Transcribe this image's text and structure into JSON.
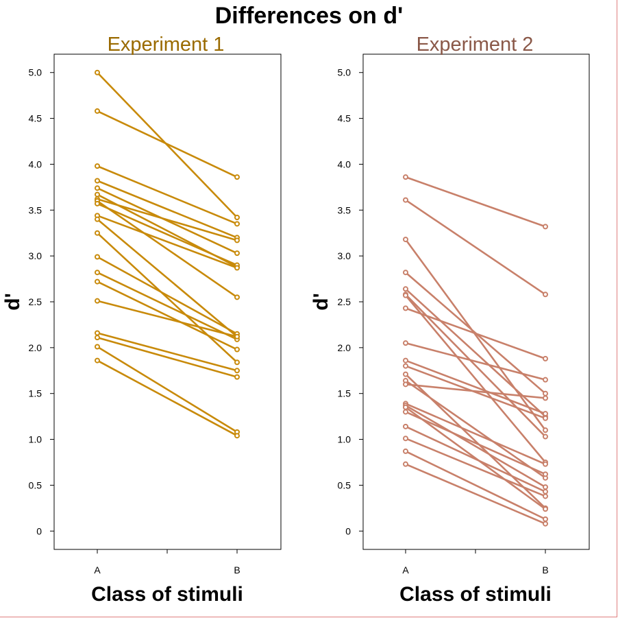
{
  "title": "Differences on d'",
  "chart_data": [
    {
      "type": "line",
      "title": "Experiment 1",
      "title_color": "#9a6a00",
      "color": "#c88a0a",
      "xlabel": "Class of stimuli",
      "ylabel": "d'",
      "categories": [
        "A",
        "B"
      ],
      "ylim": [
        -0.2,
        5.2
      ],
      "yticks": [
        "0",
        "0.5",
        "1.0",
        "1.5",
        "2.0",
        "2.5",
        "3.0",
        "3.5",
        "4.0",
        "4.5",
        "5.0"
      ],
      "series": [
        {
          "values": [
            5.0,
            3.42
          ]
        },
        {
          "values": [
            4.58,
            3.86
          ]
        },
        {
          "values": [
            3.98,
            3.35
          ]
        },
        {
          "values": [
            3.82,
            3.2
          ]
        },
        {
          "values": [
            3.74,
            3.03
          ]
        },
        {
          "values": [
            3.67,
            2.88
          ]
        },
        {
          "values": [
            3.62,
            3.17
          ]
        },
        {
          "values": [
            3.6,
            2.55
          ]
        },
        {
          "values": [
            3.57,
            2.9
          ]
        },
        {
          "values": [
            3.44,
            2.87
          ]
        },
        {
          "values": [
            3.4,
            2.12
          ]
        },
        {
          "values": [
            3.25,
            1.84
          ]
        },
        {
          "values": [
            2.99,
            2.15
          ]
        },
        {
          "values": [
            2.82,
            2.09
          ]
        },
        {
          "values": [
            2.72,
            1.98
          ]
        },
        {
          "values": [
            2.51,
            2.12
          ]
        },
        {
          "values": [
            2.16,
            1.75
          ]
        },
        {
          "values": [
            2.11,
            1.68
          ]
        },
        {
          "values": [
            2.01,
            1.08
          ]
        },
        {
          "values": [
            1.86,
            1.04
          ]
        }
      ]
    },
    {
      "type": "line",
      "title": "Experiment 2",
      "title_color": "#8a5848",
      "color": "#c8806a",
      "xlabel": "Class of stimuli",
      "ylabel": "d'",
      "categories": [
        "A",
        "B"
      ],
      "ylim": [
        -0.2,
        5.2
      ],
      "yticks": [
        "0",
        "0.5",
        "1.0",
        "1.5",
        "2.0",
        "2.5",
        "3.0",
        "3.5",
        "4.0",
        "4.5",
        "5.0"
      ],
      "series": [
        {
          "values": [
            3.86,
            3.32
          ]
        },
        {
          "values": [
            3.61,
            2.58
          ]
        },
        {
          "values": [
            3.18,
            1.1
          ]
        },
        {
          "values": [
            2.82,
            1.5
          ]
        },
        {
          "values": [
            2.64,
            1.25
          ]
        },
        {
          "values": [
            2.58,
            1.03
          ]
        },
        {
          "values": [
            2.57,
            0.75
          ]
        },
        {
          "values": [
            2.43,
            1.88
          ]
        },
        {
          "values": [
            2.05,
            1.65
          ]
        },
        {
          "values": [
            1.86,
            1.28
          ]
        },
        {
          "values": [
            1.8,
            1.23
          ]
        },
        {
          "values": [
            1.71,
            0.25
          ]
        },
        {
          "values": [
            1.64,
            0.58
          ]
        },
        {
          "values": [
            1.6,
            1.45
          ]
        },
        {
          "values": [
            1.39,
            0.73
          ]
        },
        {
          "values": [
            1.37,
            0.48
          ]
        },
        {
          "values": [
            1.3,
            0.62
          ]
        },
        {
          "values": [
            1.14,
            0.43
          ]
        },
        {
          "values": [
            1.01,
            0.38
          ]
        },
        {
          "values": [
            0.87,
            0.13
          ]
        },
        {
          "values": [
            0.73,
            0.08
          ]
        },
        {
          "values": [
            1.35,
            0.24
          ]
        }
      ]
    }
  ]
}
